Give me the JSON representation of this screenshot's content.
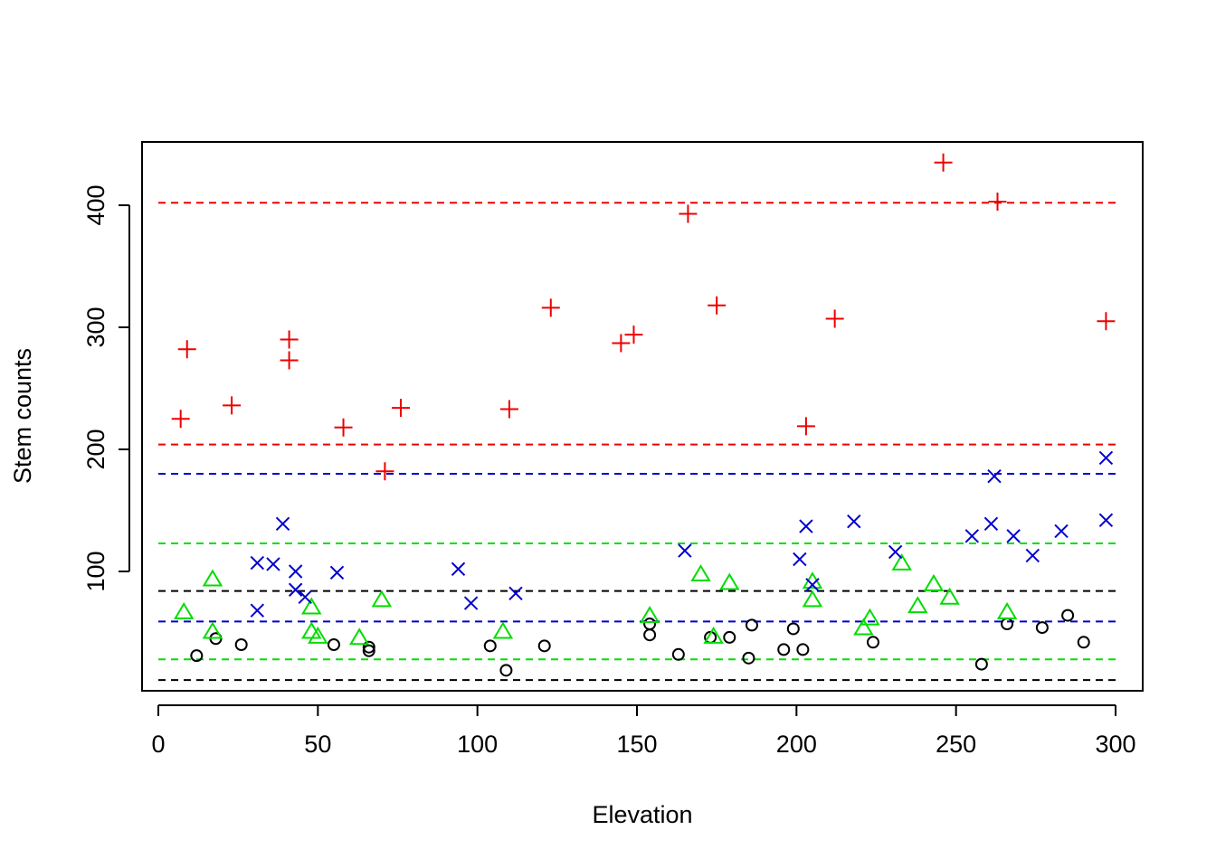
{
  "chart_data": {
    "type": "scatter",
    "title": "",
    "xlabel": "Elevation",
    "ylabel": "Stem counts",
    "xlim": [
      0,
      300
    ],
    "ylim": [
      10,
      445
    ],
    "x_ticks": [
      "0",
      "50",
      "100",
      "150",
      "200",
      "250",
      "300"
    ],
    "y_ticks": [
      "100",
      "200",
      "300",
      "400"
    ],
    "grid": false,
    "legend": "none",
    "series": [
      {
        "marker": "circle",
        "color": "#000000",
        "points": [
          [
            12,
            31
          ],
          [
            18,
            45
          ],
          [
            26,
            40
          ],
          [
            55,
            40
          ],
          [
            66,
            38
          ],
          [
            66,
            35
          ],
          [
            104,
            39
          ],
          [
            109,
            19
          ],
          [
            121,
            39
          ],
          [
            154,
            57
          ],
          [
            154,
            48
          ],
          [
            163,
            32
          ],
          [
            173,
            46
          ],
          [
            179,
            46
          ],
          [
            185,
            29
          ],
          [
            186,
            56
          ],
          [
            196,
            36
          ],
          [
            199,
            53
          ],
          [
            202,
            36
          ],
          [
            224,
            42
          ],
          [
            258,
            24
          ],
          [
            266,
            57
          ],
          [
            277,
            54
          ],
          [
            285,
            64
          ],
          [
            290,
            42
          ]
        ]
      },
      {
        "marker": "triangle",
        "color": "#00dd00",
        "points": [
          [
            8,
            66
          ],
          [
            17,
            93
          ],
          [
            17,
            50
          ],
          [
            48,
            70
          ],
          [
            48,
            50
          ],
          [
            50,
            46
          ],
          [
            63,
            45
          ],
          [
            70,
            76
          ],
          [
            108,
            50
          ],
          [
            154,
            63
          ],
          [
            170,
            97
          ],
          [
            174,
            46
          ],
          [
            179,
            90
          ],
          [
            205,
            91
          ],
          [
            205,
            76
          ],
          [
            221,
            53
          ],
          [
            223,
            61
          ],
          [
            233,
            106
          ],
          [
            238,
            71
          ],
          [
            243,
            89
          ],
          [
            248,
            78
          ],
          [
            266,
            66
          ]
        ]
      },
      {
        "marker": "plus",
        "color": "#ee0000",
        "points": [
          [
            7,
            225
          ],
          [
            9,
            282
          ],
          [
            23,
            236
          ],
          [
            41,
            290
          ],
          [
            41,
            273
          ],
          [
            58,
            218
          ],
          [
            71,
            182
          ],
          [
            76,
            234
          ],
          [
            110,
            233
          ],
          [
            123,
            316
          ],
          [
            145,
            287
          ],
          [
            149,
            294
          ],
          [
            166,
            393
          ],
          [
            175,
            318
          ],
          [
            203,
            219
          ],
          [
            212,
            307
          ],
          [
            246,
            435
          ],
          [
            263,
            403
          ],
          [
            297,
            305
          ]
        ]
      },
      {
        "marker": "cross",
        "color": "#0000cc",
        "points": [
          [
            31,
            107
          ],
          [
            31,
            68
          ],
          [
            36,
            106
          ],
          [
            39,
            139
          ],
          [
            43,
            100
          ],
          [
            43,
            85
          ],
          [
            46,
            79
          ],
          [
            56,
            99
          ],
          [
            94,
            102
          ],
          [
            98,
            74
          ],
          [
            112,
            82
          ],
          [
            165,
            117
          ],
          [
            201,
            110
          ],
          [
            203,
            137
          ],
          [
            205,
            89
          ],
          [
            218,
            141
          ],
          [
            231,
            116
          ],
          [
            255,
            129
          ],
          [
            261,
            139
          ],
          [
            262,
            178
          ],
          [
            268,
            129
          ],
          [
            274,
            113
          ],
          [
            283,
            133
          ],
          [
            297,
            142
          ],
          [
            297,
            193
          ]
        ]
      }
    ],
    "reference_lines": [
      {
        "y": 402,
        "color": "#ee0000"
      },
      {
        "y": 204,
        "color": "#ee0000"
      },
      {
        "y": 180,
        "color": "#0000cc"
      },
      {
        "y": 123,
        "color": "#00dd00"
      },
      {
        "y": 84,
        "color": "#000000"
      },
      {
        "y": 59,
        "color": "#0000cc"
      },
      {
        "y": 28,
        "color": "#00dd00"
      },
      {
        "y": 11,
        "color": "#000000"
      }
    ]
  }
}
